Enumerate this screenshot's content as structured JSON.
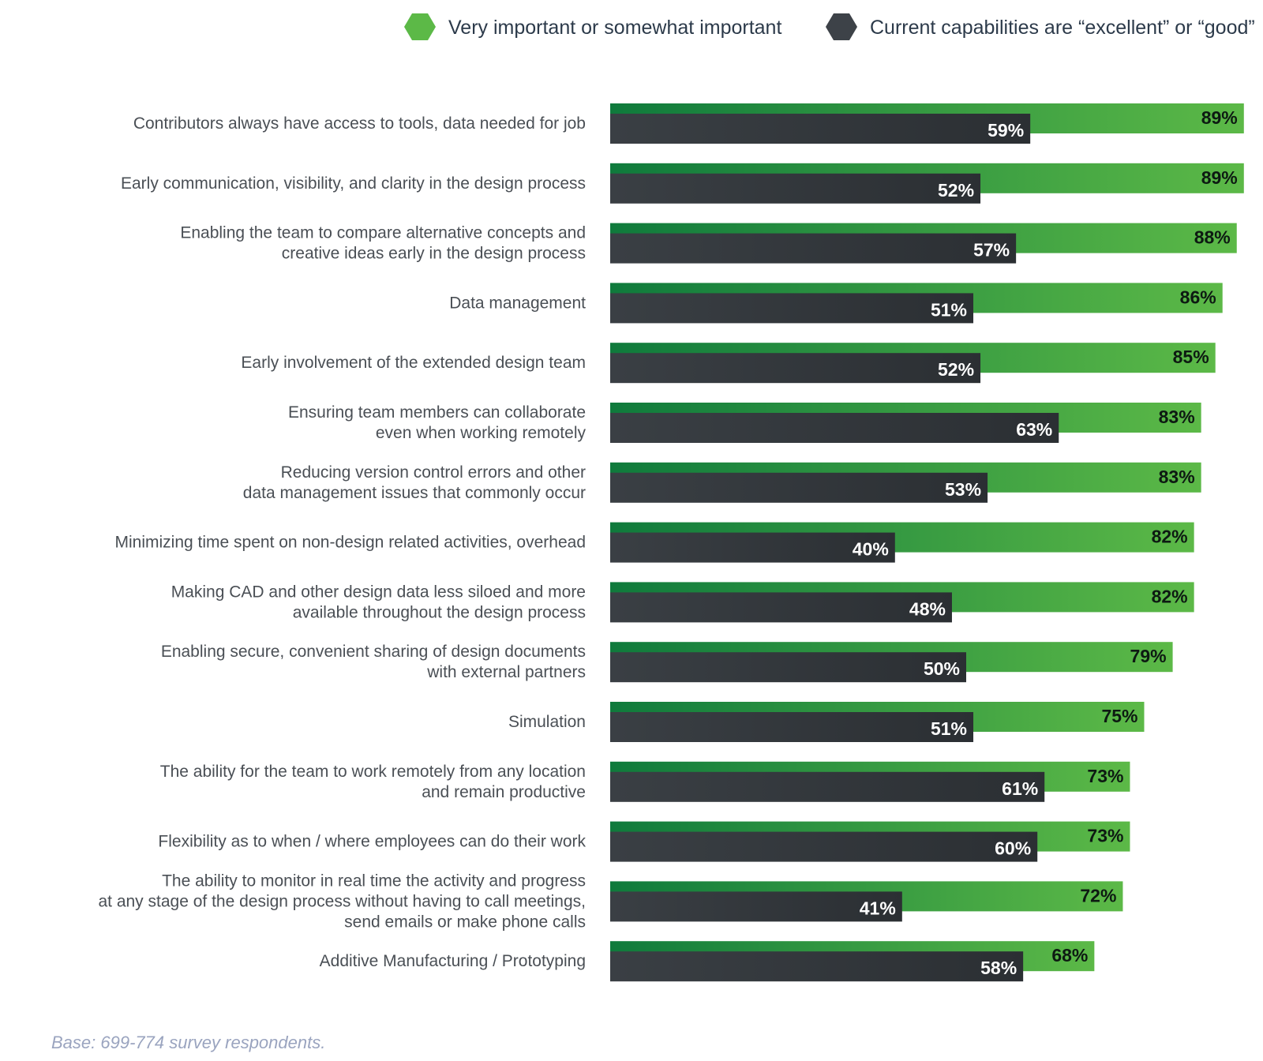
{
  "legend": {
    "important_label": "Very important or somewhat important",
    "capabilities_label": "Current capabilities are “excellent” or “good”"
  },
  "footnote": "Base: 699-774 survey respondents.",
  "colors": {
    "green_dark": "#0f7a3c",
    "green_light": "#5cb947",
    "gray_dark": "#3a3f44",
    "gray_light": "#2b2f33",
    "legend_green": "#5cb947",
    "legend_gray": "#3d4248"
  },
  "chart_data": {
    "type": "bar",
    "orientation": "horizontal",
    "xlim": [
      0,
      100
    ],
    "grid": false,
    "legend_position": "top-right",
    "categories": [
      [
        "Contributors always have access to tools, data needed for job"
      ],
      [
        "Early communication, visibility, and clarity in the design process"
      ],
      [
        "Enabling the team to compare alternative concepts and",
        "creative ideas early in the design process"
      ],
      [
        "Data management"
      ],
      [
        "Early involvement of the extended design team"
      ],
      [
        "Ensuring team members can collaborate",
        "even when working remotely"
      ],
      [
        "Reducing version control errors and other",
        "data management issues that commonly occur"
      ],
      [
        "Minimizing time spent on non-design related activities, overhead"
      ],
      [
        "Making CAD and other design data less siloed and more",
        "available throughout the design process"
      ],
      [
        "Enabling secure, convenient sharing of design documents",
        "with external partners"
      ],
      [
        "Simulation"
      ],
      [
        "The ability for the team to work remotely from any location",
        "and remain productive"
      ],
      [
        "Flexibility as to when / where employees can do their work"
      ],
      [
        "The ability to monitor in real time the activity and progress",
        "at any stage of the design process without having to call meetings,",
        "send emails or make phone calls"
      ],
      [
        "Additive Manufacturing / Prototyping"
      ]
    ],
    "series": [
      {
        "name": "Very important or somewhat important",
        "values": [
          89,
          89,
          88,
          86,
          85,
          83,
          83,
          82,
          82,
          79,
          75,
          73,
          73,
          72,
          68
        ],
        "labels": [
          "89%",
          "89%",
          "88%",
          "86%",
          "85%",
          "83%",
          "83%",
          "82%",
          "82%",
          "79%",
          "75%",
          "73%",
          "73%",
          "72%",
          "68%"
        ]
      },
      {
        "name": "Current capabilities are “excellent” or “good”",
        "values": [
          59,
          52,
          57,
          51,
          52,
          63,
          53,
          40,
          48,
          50,
          51,
          61,
          60,
          41,
          58
        ],
        "labels": [
          "59%",
          "52%",
          "57%",
          "51%",
          "52%",
          "63%",
          "53%",
          "40%",
          "48%",
          "50%",
          "51%",
          "61%",
          "60%",
          "41%",
          "58%"
        ]
      }
    ]
  }
}
